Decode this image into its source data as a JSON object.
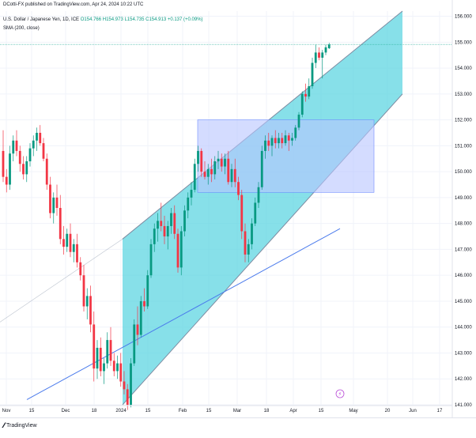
{
  "header": {
    "publisher": "DCotti-FX published on TradingView.com, Apr 24, 2024 10:22 UTC",
    "symbol": "U.S. Dollar / Japanese Yen, 1D, ICE",
    "quote": "O154.766 H154.973 L154.735 C154.913 +0.137 (+0.09%)",
    "indicator": "SMA (200, close)"
  },
  "footer": {
    "logo_text": "TradingView"
  },
  "colors": {
    "up": "#089981",
    "down": "#f23645",
    "channel_fill": "#5fd6e2",
    "channel_edge": "#7d8ba1",
    "box_fill": "#b7c5ff",
    "sma": "#4b7bec",
    "price_line": "#22ab94"
  },
  "chart_data": {
    "type": "candlestick",
    "ylim": [
      141.0,
      156.2
    ],
    "y_ticks": [
      "156.000",
      "155.000",
      "154.000",
      "153.000",
      "152.000",
      "151.000",
      "150.000",
      "149.000",
      "148.000",
      "147.000",
      "146.000",
      "145.000",
      "144.000",
      "143.000",
      "142.000",
      "141.000"
    ],
    "x_ticks": [
      "Nov",
      "15",
      "Dec",
      "18",
      "2024",
      "15",
      "Feb",
      "15",
      "Mar",
      "18",
      "Apr",
      "15",
      "May",
      "20",
      "Jun",
      "17"
    ],
    "last_price": "154.913",
    "countdown": "11:37:38",
    "candles_ohlc": [
      [
        150.8,
        151.6,
        149.6,
        149.8
      ],
      [
        149.8,
        150.1,
        149.2,
        149.5
      ],
      [
        149.5,
        151.0,
        149.3,
        150.7
      ],
      [
        150.7,
        151.4,
        150.4,
        151.2
      ],
      [
        151.2,
        151.6,
        150.6,
        150.8
      ],
      [
        150.8,
        151.0,
        150.0,
        150.3
      ],
      [
        150.3,
        150.6,
        149.7,
        149.9
      ],
      [
        149.9,
        150.6,
        149.6,
        150.4
      ],
      [
        150.4,
        151.1,
        150.2,
        150.9
      ],
      [
        150.9,
        151.4,
        150.6,
        151.2
      ],
      [
        151.2,
        151.7,
        150.8,
        151.5
      ],
      [
        151.5,
        151.8,
        151.0,
        151.1
      ],
      [
        151.1,
        151.3,
        150.4,
        150.5
      ],
      [
        150.5,
        150.7,
        149.3,
        149.5
      ],
      [
        149.5,
        149.8,
        148.2,
        148.4
      ],
      [
        148.4,
        149.2,
        148.0,
        149.0
      ],
      [
        149.0,
        149.5,
        148.3,
        148.6
      ],
      [
        148.6,
        149.1,
        147.2,
        147.4
      ],
      [
        147.4,
        147.9,
        146.8,
        147.1
      ],
      [
        147.1,
        147.8,
        146.9,
        147.6
      ],
      [
        147.6,
        148.0,
        146.7,
        146.9
      ],
      [
        146.9,
        147.4,
        146.5,
        147.2
      ],
      [
        147.2,
        147.6,
        146.3,
        146.5
      ],
      [
        146.5,
        146.7,
        145.8,
        146.0
      ],
      [
        146.0,
        146.4,
        144.6,
        144.8
      ],
      [
        144.8,
        145.5,
        144.3,
        145.2
      ],
      [
        145.2,
        145.6,
        143.8,
        144.1
      ],
      [
        144.1,
        144.6,
        141.9,
        142.4
      ],
      [
        142.4,
        143.5,
        142.0,
        143.2
      ],
      [
        143.2,
        143.6,
        142.1,
        142.3
      ],
      [
        142.3,
        142.8,
        141.8,
        142.6
      ],
      [
        142.6,
        143.8,
        142.4,
        143.5
      ],
      [
        143.5,
        144.0,
        142.5,
        142.7
      ],
      [
        142.7,
        143.0,
        142.1,
        142.3
      ],
      [
        142.3,
        142.9,
        142.0,
        142.6
      ],
      [
        142.6,
        143.0,
        141.7,
        141.9
      ],
      [
        141.9,
        142.3,
        141.4,
        141.6
      ],
      [
        141.6,
        141.8,
        140.8,
        141.0
      ],
      [
        141.0,
        142.8,
        140.9,
        142.6
      ],
      [
        142.6,
        144.3,
        142.5,
        144.1
      ],
      [
        144.1,
        144.8,
        143.3,
        143.7
      ],
      [
        143.7,
        145.2,
        143.6,
        145.0
      ],
      [
        145.0,
        145.5,
        144.6,
        144.8
      ],
      [
        144.8,
        146.2,
        144.7,
        146.0
      ],
      [
        146.0,
        147.4,
        145.9,
        147.2
      ],
      [
        147.2,
        148.0,
        146.9,
        147.8
      ],
      [
        147.8,
        148.4,
        147.3,
        148.1
      ],
      [
        148.1,
        148.8,
        147.7,
        147.9
      ],
      [
        147.9,
        148.3,
        147.2,
        147.5
      ],
      [
        147.5,
        148.1,
        147.0,
        147.9
      ],
      [
        147.9,
        148.6,
        147.6,
        148.4
      ],
      [
        148.4,
        148.7,
        147.4,
        147.6
      ],
      [
        147.6,
        147.8,
        146.1,
        146.3
      ],
      [
        146.3,
        147.9,
        146.0,
        147.7
      ],
      [
        147.7,
        148.7,
        147.5,
        148.5
      ],
      [
        148.5,
        149.2,
        148.2,
        149.0
      ],
      [
        149.0,
        149.6,
        148.7,
        149.3
      ],
      [
        149.3,
        150.5,
        149.2,
        150.3
      ],
      [
        150.3,
        151.0,
        150.0,
        150.8
      ],
      [
        150.8,
        150.9,
        149.8,
        150.0
      ],
      [
        150.0,
        150.4,
        149.7,
        149.8
      ],
      [
        149.8,
        150.3,
        149.5,
        150.1
      ],
      [
        150.1,
        150.5,
        149.6,
        149.9
      ],
      [
        149.9,
        150.6,
        149.7,
        150.4
      ],
      [
        150.4,
        150.8,
        150.1,
        150.5
      ],
      [
        150.5,
        150.7,
        150.0,
        150.2
      ],
      [
        150.2,
        150.7,
        149.9,
        150.5
      ],
      [
        150.5,
        150.8,
        149.5,
        149.6
      ],
      [
        149.6,
        150.3,
        149.4,
        150.1
      ],
      [
        150.1,
        150.5,
        149.4,
        149.6
      ],
      [
        149.6,
        149.8,
        148.9,
        149.1
      ],
      [
        149.1,
        149.3,
        147.4,
        147.7
      ],
      [
        147.7,
        148.0,
        146.5,
        146.8
      ],
      [
        146.8,
        147.4,
        146.5,
        147.2
      ],
      [
        147.2,
        148.2,
        147.0,
        148.0
      ],
      [
        148.0,
        149.0,
        147.9,
        148.8
      ],
      [
        148.8,
        149.6,
        148.6,
        149.4
      ],
      [
        149.4,
        151.0,
        149.3,
        150.8
      ],
      [
        150.8,
        151.4,
        150.5,
        151.2
      ],
      [
        151.2,
        151.5,
        150.8,
        151.0
      ],
      [
        151.0,
        151.4,
        150.6,
        151.3
      ],
      [
        151.3,
        151.6,
        150.9,
        151.1
      ],
      [
        151.1,
        151.5,
        150.9,
        151.3
      ],
      [
        151.3,
        151.5,
        150.9,
        151.1
      ],
      [
        151.1,
        151.6,
        151.0,
        151.4
      ],
      [
        151.4,
        151.5,
        150.8,
        151.2
      ],
      [
        151.2,
        151.5,
        151.0,
        151.3
      ],
      [
        151.3,
        151.8,
        151.2,
        151.7
      ],
      [
        151.7,
        152.3,
        151.6,
        152.2
      ],
      [
        152.2,
        153.1,
        152.1,
        153.0
      ],
      [
        153.0,
        153.4,
        152.7,
        152.9
      ],
      [
        152.9,
        153.6,
        152.8,
        153.3
      ],
      [
        153.3,
        154.4,
        153.2,
        154.2
      ],
      [
        154.2,
        154.9,
        154.0,
        154.6
      ],
      [
        154.6,
        154.8,
        154.3,
        154.4
      ],
      [
        154.4,
        154.7,
        153.6,
        154.6
      ],
      [
        154.6,
        154.9,
        154.5,
        154.8
      ],
      [
        154.766,
        154.973,
        154.735,
        154.913
      ]
    ],
    "sma_200": [
      [
        141.2,
        141.5,
        141.8,
        142.1,
        142.4,
        142.7,
        143.0,
        143.3,
        143.6,
        143.9,
        144.2,
        144.5,
        144.8,
        145.1,
        145.4,
        145.7,
        146.0,
        146.3,
        146.6,
        146.9,
        147.2,
        147.5,
        147.8
      ]
    ],
    "channel": {
      "lower_start": [
        141.0,
        0.2
      ],
      "lower_end": [
        153.0,
        0.86
      ],
      "upper_start": [
        147.4,
        0.2
      ],
      "upper_end": [
        156.2,
        0.83
      ]
    },
    "range_box": {
      "top": 152.0,
      "bottom": 149.2
    }
  }
}
